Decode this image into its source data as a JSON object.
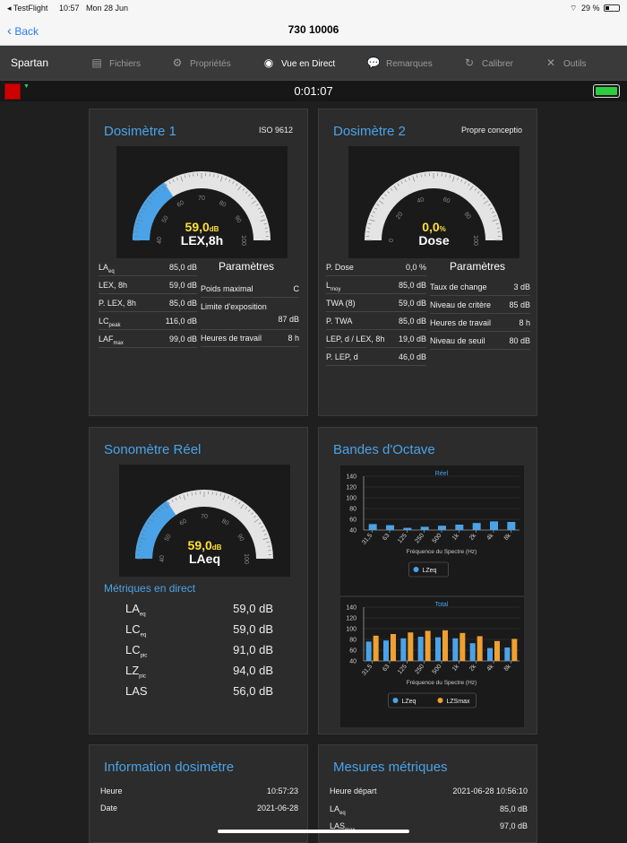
{
  "status": {
    "app": "◂ TestFlight",
    "time": "10:57",
    "date": "Mon 28 Jun",
    "battery": "29 %"
  },
  "nav": {
    "back": "Back",
    "title": "730 10006"
  },
  "tabs": {
    "brand": "Spartan",
    "items": [
      {
        "label": "Fichiers",
        "icon": "folder-icon",
        "glyph": "▤"
      },
      {
        "label": "Propriétés",
        "icon": "gear-icon",
        "glyph": "⚙"
      },
      {
        "label": "Vue en Direct",
        "icon": "eye-icon",
        "glyph": "◉"
      },
      {
        "label": "Remarques",
        "icon": "comment-icon",
        "glyph": "💬"
      },
      {
        "label": "Calibrer",
        "icon": "refresh-icon",
        "glyph": "↻"
      },
      {
        "label": "Outils",
        "icon": "tools-icon",
        "glyph": "✕"
      }
    ]
  },
  "timer": "0:01:07",
  "colors": {
    "accent": "#4aa3e8",
    "gauge_fill": "#4aa3e8",
    "value": "#ffe033",
    "bar_blue": "#4aa3e8",
    "bar_orange": "#f0a030"
  },
  "dos1": {
    "title": "Dosimètre 1",
    "std": "ISO 9612",
    "gauge": {
      "value": "59,0",
      "unit": "dB",
      "label": "LEX,8h",
      "fill": 59,
      "ticks": [
        "40",
        "50",
        "60",
        "70",
        "80",
        "90",
        "100"
      ]
    },
    "metrics": [
      {
        "k": "LA",
        "s": "eq",
        "v": "85,0 dB"
      },
      {
        "k": "LEX, 8h",
        "s": "",
        "v": "59,0 dB"
      },
      {
        "k": "P. LEX, 8h",
        "s": "",
        "v": "85,0 dB"
      },
      {
        "k": "LC",
        "s": "peak",
        "v": "116,0 dB"
      },
      {
        "k": "LAF",
        "s": "max",
        "v": "99,0 dB"
      }
    ],
    "params_title": "Paramètres",
    "params": [
      {
        "k": "Poids maximal",
        "v": "C"
      },
      {
        "k": "Limite d'exposition",
        "v": "87 dB"
      },
      {
        "k": "Heures de travail",
        "v": "8 h"
      }
    ]
  },
  "dos2": {
    "title": "Dosimètre 2",
    "std": "Propre conceptio",
    "gauge": {
      "value": "0,0",
      "unit": "%",
      "label": "Dose",
      "fill": 0,
      "ticks": [
        "0",
        "20",
        "40",
        "60",
        "80",
        "100"
      ]
    },
    "metrics": [
      {
        "k": "P. Dose",
        "s": "",
        "v": "0,0 %"
      },
      {
        "k": "L",
        "s": "moy",
        "v": "85,0 dB"
      },
      {
        "k": "TWA (8)",
        "s": "",
        "v": "59,0 dB"
      },
      {
        "k": "P. TWA",
        "s": "",
        "v": "85,0 dB"
      },
      {
        "k": "LEP, d / LEX, 8h",
        "s": "",
        "v": "19,0 dB"
      },
      {
        "k": "P. LEP, d",
        "s": "",
        "v": "46,0 dB"
      }
    ],
    "params_title": "Paramètres",
    "params": [
      {
        "k": "Taux de change",
        "v": "3 dB"
      },
      {
        "k": "Niveau de critère",
        "v": "85 dB"
      },
      {
        "k": "Heures de travail",
        "v": "8 h"
      },
      {
        "k": "Niveau de seuil",
        "v": "80 dB"
      }
    ]
  },
  "sono": {
    "title": "Sonomètre Réel",
    "gauge": {
      "value": "59,0",
      "unit": "dB",
      "label": "LAeq",
      "fill": 59,
      "ticks": [
        "40",
        "50",
        "60",
        "70",
        "80",
        "90",
        "100"
      ]
    },
    "live_title": "Métriques en direct",
    "metrics": [
      {
        "k": "LA",
        "s": "eq",
        "v": "59,0 dB"
      },
      {
        "k": "LC",
        "s": "eq",
        "v": "59,0 dB"
      },
      {
        "k": "LC",
        "s": "pic",
        "v": "91,0 dB"
      },
      {
        "k": "LZ",
        "s": "pic",
        "v": "94,0 dB"
      },
      {
        "k": "LAS",
        "s": "",
        "v": "56,0 dB"
      }
    ]
  },
  "octave": {
    "title": "Bandes d'Octave"
  },
  "chart_data": [
    {
      "type": "bar",
      "title": "Réel",
      "categories": [
        "31,5",
        "63",
        "125",
        "250",
        "500",
        "1k",
        "2k",
        "4k",
        "8k"
      ],
      "xlabel": "Fréquence du Spectre (Hz)",
      "ylabel": "",
      "ylim": [
        40,
        140
      ],
      "yticks": [
        "40",
        "60",
        "80",
        "100",
        "120",
        "140"
      ],
      "series": [
        {
          "name": "LZeq",
          "values": [
            51,
            49,
            44,
            46,
            48,
            50,
            53,
            56,
            55
          ]
        }
      ]
    },
    {
      "type": "bar",
      "title": "Total",
      "categories": [
        "31,5",
        "63",
        "125",
        "250",
        "500",
        "1k",
        "2k",
        "4k",
        "8k"
      ],
      "xlabel": "Fréquence du Spectre (Hz)",
      "ylabel": "",
      "ylim": [
        40,
        140
      ],
      "yticks": [
        "40",
        "60",
        "80",
        "100",
        "120",
        "140"
      ],
      "series": [
        {
          "name": "LZeq",
          "values": [
            76,
            78,
            82,
            85,
            84,
            82,
            73,
            64,
            65
          ]
        },
        {
          "name": "LZSmax",
          "values": [
            87,
            90,
            93,
            96,
            97,
            92,
            86,
            77,
            81
          ]
        }
      ]
    }
  ],
  "info": {
    "title": "Information dosimètre",
    "rows": [
      {
        "k": "Heure",
        "v": "10:57:23"
      },
      {
        "k": "Date",
        "v": "2021-06-28"
      }
    ]
  },
  "mesures": {
    "title": "Mesures métriques",
    "rows": [
      {
        "k": "Heure départ",
        "s": "",
        "v": "2021-06-28 10:56:10"
      },
      {
        "k": "LA",
        "s": "eq",
        "v": "85,0 dB"
      },
      {
        "k": "LAS",
        "s": "max",
        "v": "97,0 dB"
      }
    ]
  }
}
